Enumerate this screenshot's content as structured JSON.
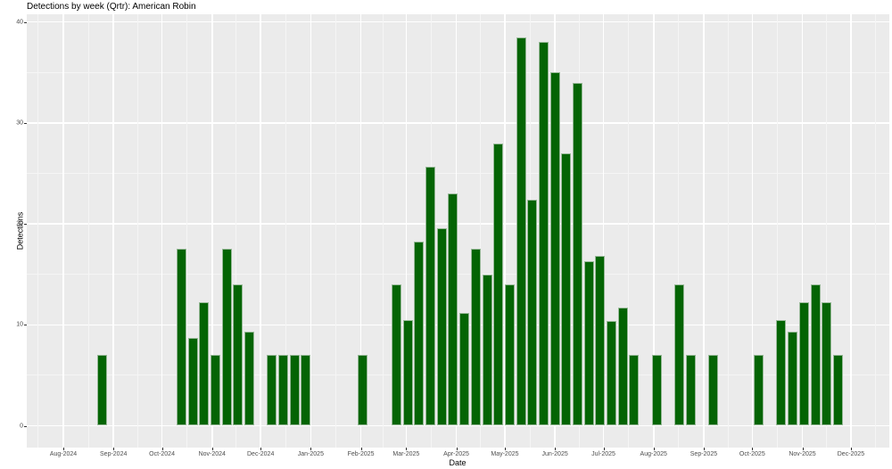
{
  "title": "Detections by week (Qrtr): American Robin",
  "chart_data": {
    "type": "bar",
    "title": "Detections by week (Qrtr): American Robin",
    "xlabel": "Date",
    "ylabel": "Detections",
    "ylim": [
      0,
      40
    ],
    "y_major_ticks": [
      0,
      10,
      20,
      30,
      40
    ],
    "y_minor_ticks": [
      5,
      15,
      25,
      35
    ],
    "grid": "on",
    "legend": "none",
    "colors": {
      "bar_fill": "#046404",
      "bar_edge": "#96b896",
      "panel_bg": "#ebebeb",
      "grid_major": "#ffffff",
      "grid_minor": "#f5f5f5",
      "tick_text": "#4d4d4d",
      "axis_title_text": "#000000",
      "title_text": "#000000"
    },
    "x_ticks": [
      {
        "label": "Aug-2024",
        "date": "2024-08-01"
      },
      {
        "label": "Sep-2024",
        "date": "2024-09-01"
      },
      {
        "label": "Oct-2024",
        "date": "2024-10-01"
      },
      {
        "label": "Nov-2024",
        "date": "2024-11-01"
      },
      {
        "label": "Dec-2024",
        "date": "2024-12-01"
      },
      {
        "label": "Jan-2025",
        "date": "2025-01-01"
      },
      {
        "label": "Feb-2025",
        "date": "2025-02-01"
      },
      {
        "label": "Mar-2025",
        "date": "2025-03-01"
      },
      {
        "label": "Apr-2025",
        "date": "2025-04-01"
      },
      {
        "label": "May-2025",
        "date": "2025-05-01"
      },
      {
        "label": "Jun-2025",
        "date": "2025-06-01"
      },
      {
        "label": "Jul-2025",
        "date": "2025-07-01"
      },
      {
        "label": "Aug-2025",
        "date": "2025-08-01"
      },
      {
        "label": "Sep-2025",
        "date": "2025-09-01"
      },
      {
        "label": "Oct-2025",
        "date": "2025-10-01"
      },
      {
        "label": "Nov-2025",
        "date": "2025-11-01"
      },
      {
        "label": "Dec-2025",
        "date": "2025-12-01"
      }
    ],
    "series": [
      {
        "week": "2024-08-25",
        "value": 7.0
      },
      {
        "week": "2024-10-13",
        "value": 17.5
      },
      {
        "week": "2024-10-20",
        "value": 8.7
      },
      {
        "week": "2024-10-27",
        "value": 12.2
      },
      {
        "week": "2024-11-03",
        "value": 7.0
      },
      {
        "week": "2024-11-10",
        "value": 17.5
      },
      {
        "week": "2024-11-17",
        "value": 14.0
      },
      {
        "week": "2024-11-24",
        "value": 9.3
      },
      {
        "week": "2024-12-08",
        "value": 7.0
      },
      {
        "week": "2024-12-15",
        "value": 7.0
      },
      {
        "week": "2024-12-22",
        "value": 7.0
      },
      {
        "week": "2024-12-29",
        "value": 7.0
      },
      {
        "week": "2025-02-02",
        "value": 7.0
      },
      {
        "week": "2025-02-23",
        "value": 14.0
      },
      {
        "week": "2025-03-02",
        "value": 10.5
      },
      {
        "week": "2025-03-09",
        "value": 18.2
      },
      {
        "week": "2025-03-16",
        "value": 25.7
      },
      {
        "week": "2025-03-23",
        "value": 19.6
      },
      {
        "week": "2025-03-30",
        "value": 23.0
      },
      {
        "week": "2025-04-06",
        "value": 11.2
      },
      {
        "week": "2025-04-13",
        "value": 17.5
      },
      {
        "week": "2025-04-20",
        "value": 15.0
      },
      {
        "week": "2025-04-27",
        "value": 28.0
      },
      {
        "week": "2025-05-04",
        "value": 14.0
      },
      {
        "week": "2025-05-11",
        "value": 38.5
      },
      {
        "week": "2025-05-18",
        "value": 22.4
      },
      {
        "week": "2025-05-25",
        "value": 38.0
      },
      {
        "week": "2025-06-01",
        "value": 35.0
      },
      {
        "week": "2025-06-08",
        "value": 27.0
      },
      {
        "week": "2025-06-15",
        "value": 34.0
      },
      {
        "week": "2025-06-22",
        "value": 16.3
      },
      {
        "week": "2025-06-29",
        "value": 16.8
      },
      {
        "week": "2025-07-06",
        "value": 10.4
      },
      {
        "week": "2025-07-13",
        "value": 11.7
      },
      {
        "week": "2025-07-20",
        "value": 7.0
      },
      {
        "week": "2025-08-03",
        "value": 7.0
      },
      {
        "week": "2025-08-17",
        "value": 14.0
      },
      {
        "week": "2025-08-24",
        "value": 7.0
      },
      {
        "week": "2025-09-07",
        "value": 7.0
      },
      {
        "week": "2025-10-05",
        "value": 7.0
      },
      {
        "week": "2025-10-19",
        "value": 10.5
      },
      {
        "week": "2025-10-26",
        "value": 9.3
      },
      {
        "week": "2025-11-02",
        "value": 12.2
      },
      {
        "week": "2025-11-09",
        "value": 14.0
      },
      {
        "week": "2025-11-16",
        "value": 12.2
      },
      {
        "week": "2025-11-23",
        "value": 7.0
      }
    ]
  }
}
